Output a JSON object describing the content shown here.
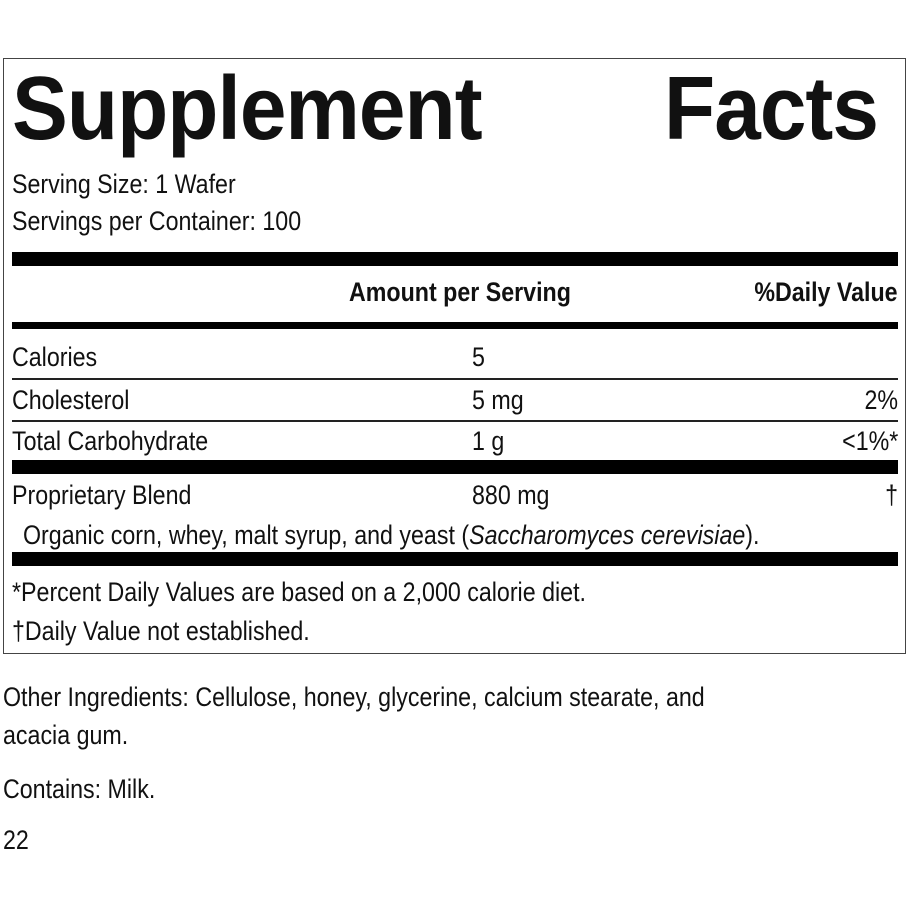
{
  "panel": {
    "title_word1": "Supplement",
    "title_word2": "Facts",
    "serving_size": "Serving Size: 1 Wafer",
    "servings_per_container": "Servings per Container: 100",
    "header": {
      "amount": "Amount per Serving",
      "daily_value": "%Daily Value"
    },
    "rows": [
      {
        "name": "Calories",
        "amount": "5",
        "dv": ""
      },
      {
        "name": "Cholesterol",
        "amount": "5 mg",
        "dv": "2%"
      },
      {
        "name": "Total Carbohydrate",
        "amount": "1 g",
        "dv": "<1%*"
      },
      {
        "name": "Proprietary Blend",
        "amount": "880 mg",
        "dv": "†"
      }
    ],
    "blend_desc_prefix": "Organic corn, whey, malt syrup, and yeast (",
    "blend_desc_italic": "Saccharomyces cerevisiae",
    "blend_desc_suffix": ").",
    "footnote1": "*Percent Daily Values are based on a 2,000 calorie diet.",
    "footnote2": "†Daily Value not established."
  },
  "other_ingredients_line1": "Other Ingredients: Cellulose, honey, glycerine, calcium stearate, and",
  "other_ingredients_line2": "acacia gum.",
  "contains": "Contains: Milk.",
  "code": "22"
}
